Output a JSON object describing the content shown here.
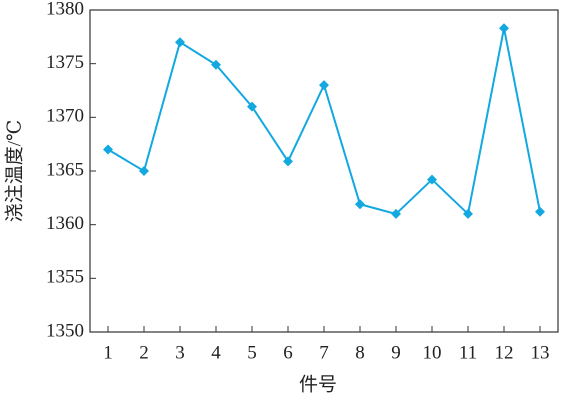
{
  "chart_data": {
    "type": "line",
    "x_label": "件号",
    "y_label": "浇注温度/℃",
    "categories": [
      "1",
      "2",
      "3",
      "4",
      "5",
      "6",
      "7",
      "8",
      "9",
      "10",
      "11",
      "12",
      "13"
    ],
    "values": [
      1367,
      1365,
      1377,
      1374.9,
      1371,
      1365.9,
      1373,
      1361.9,
      1361,
      1364.2,
      1361,
      1378.3,
      1361.2
    ],
    "color": "#13a8e0",
    "marker": "diamond",
    "ylim": [
      1350,
      1380
    ],
    "yticks": [
      1350,
      1355,
      1360,
      1365,
      1370,
      1375,
      1380
    ],
    "grid": false
  }
}
